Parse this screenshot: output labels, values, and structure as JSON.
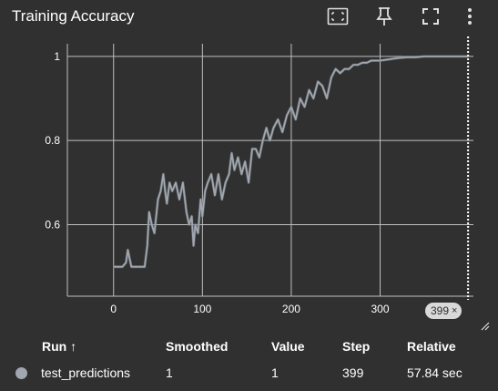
{
  "card": {
    "title": "Training Accuracy",
    "toolbar": [
      {
        "icon": "fit-domain-icon",
        "label": ""
      },
      {
        "icon": "pin-icon",
        "label": ""
      },
      {
        "icon": "fullscreen-icon",
        "label": ""
      },
      {
        "icon": "more-vert-icon",
        "label": ""
      }
    ]
  },
  "colors": {
    "background": "#303030",
    "grid": "#bfbfbf",
    "series": "#a0a7b0",
    "series_raw": "#6b6f74"
  },
  "chart_data": {
    "type": "line",
    "title": "",
    "xlabel": "",
    "ylabel": "",
    "xlim": [
      -52,
      405
    ],
    "ylim": [
      0.43,
      1.03
    ],
    "x_ticks": [
      "0",
      "100",
      "200",
      "300"
    ],
    "y_ticks": [
      "0.6",
      "0.8",
      "1"
    ],
    "grid": true,
    "series": [
      {
        "name": "test_predictions",
        "x": [
          0,
          10,
          14,
          16,
          18,
          20,
          22,
          25,
          30,
          33,
          35,
          38,
          40,
          43,
          46,
          50,
          53,
          56,
          58,
          60,
          63,
          66,
          70,
          74,
          78,
          82,
          85,
          88,
          90,
          92,
          95,
          98,
          100,
          103,
          106,
          110,
          114,
          118,
          122,
          126,
          130,
          133,
          136,
          140,
          144,
          148,
          152,
          156,
          160,
          164,
          168,
          172,
          176,
          180,
          185,
          190,
          195,
          200,
          205,
          210,
          215,
          220,
          225,
          230,
          235,
          240,
          245,
          250,
          255,
          260,
          265,
          270,
          275,
          280,
          285,
          290,
          295,
          300,
          310,
          320,
          330,
          340,
          350,
          360,
          370,
          380,
          390,
          399
        ],
        "values": [
          0.5,
          0.5,
          0.51,
          0.54,
          0.52,
          0.5,
          0.5,
          0.5,
          0.5,
          0.5,
          0.5,
          0.55,
          0.63,
          0.6,
          0.58,
          0.66,
          0.68,
          0.72,
          0.68,
          0.65,
          0.7,
          0.68,
          0.7,
          0.66,
          0.7,
          0.63,
          0.6,
          0.62,
          0.55,
          0.6,
          0.58,
          0.66,
          0.62,
          0.68,
          0.7,
          0.72,
          0.67,
          0.72,
          0.66,
          0.7,
          0.72,
          0.77,
          0.73,
          0.76,
          0.72,
          0.75,
          0.7,
          0.78,
          0.78,
          0.76,
          0.8,
          0.83,
          0.8,
          0.83,
          0.85,
          0.82,
          0.86,
          0.88,
          0.85,
          0.9,
          0.88,
          0.92,
          0.9,
          0.94,
          0.93,
          0.9,
          0.95,
          0.97,
          0.96,
          0.97,
          0.97,
          0.98,
          0.98,
          0.985,
          0.985,
          0.99,
          0.99,
          0.99,
          0.993,
          0.996,
          0.998,
          0.998,
          1,
          1,
          1,
          1,
          1,
          1
        ]
      }
    ],
    "cursor_step": 399
  },
  "step_badge": {
    "value": "399",
    "close": "×"
  },
  "table": {
    "headers": {
      "run": "Run ↑",
      "smoothed": "Smoothed",
      "value": "Value",
      "step": "Step",
      "relative": "Relative"
    },
    "rows": [
      {
        "run": "test_predictions",
        "smoothed": "1",
        "value": "1",
        "step": "399",
        "relative": "57.84 sec",
        "color": "#a0a7b0"
      }
    ]
  }
}
